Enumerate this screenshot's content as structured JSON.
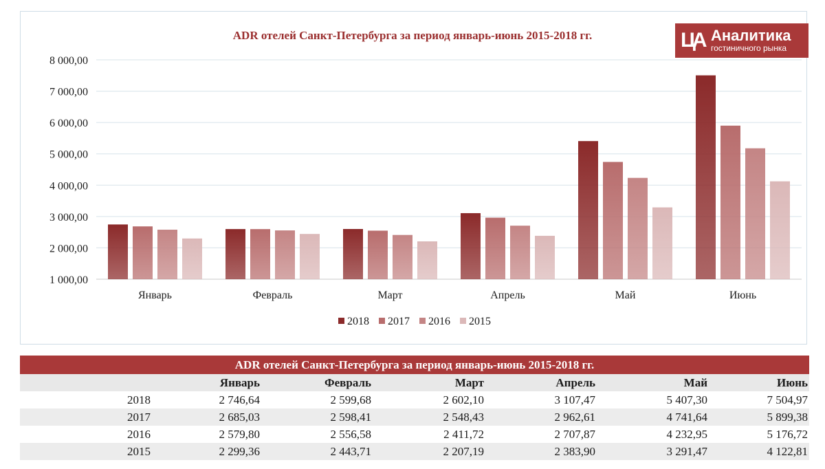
{
  "chart_data": {
    "type": "bar",
    "title": "ADR отелей Санкт-Петербурга за период январь-июнь 2015-2018 гг.",
    "categories": [
      "Январь",
      "Февраль",
      "Март",
      "Апрель",
      "Май",
      "Июнь"
    ],
    "series": [
      {
        "name": "2018",
        "color": "#8b2a2a",
        "values": [
          2746.64,
          2599.68,
          2602.1,
          3107.47,
          5407.3,
          7504.97
        ]
      },
      {
        "name": "2017",
        "color": "#b86d6d",
        "values": [
          2685.03,
          2598.41,
          2548.43,
          2962.61,
          4741.64,
          5899.38
        ]
      },
      {
        "name": "2016",
        "color": "#c48585",
        "values": [
          2579.8,
          2556.58,
          2411.72,
          2707.87,
          4232.95,
          5176.72
        ]
      },
      {
        "name": "2015",
        "color": "#dbb8b8",
        "values": [
          2299.36,
          2443.71,
          2207.19,
          2383.9,
          3291.47,
          4122.81
        ]
      }
    ],
    "ylim": [
      1000,
      8000
    ],
    "yticks": [
      "1 000,00",
      "2 000,00",
      "3 000,00",
      "4 000,00",
      "5 000,00",
      "6 000,00",
      "7 000,00",
      "8 000,00"
    ],
    "grid": true,
    "legend": "bottom"
  },
  "logo": {
    "mark": "ЦА",
    "name": "Аналитика",
    "sub": "гостиничного рынка"
  },
  "table": {
    "title": "ADR отелей Санкт-Петербурга за период январь-июнь 2015-2018 гг.",
    "columns": [
      "",
      "Январь",
      "Февраль",
      "Март",
      "Апрель",
      "Май",
      "Июнь"
    ],
    "rows": [
      [
        "2018",
        "2 746,64",
        "2 599,68",
        "2 602,10",
        "3 107,47",
        "5 407,30",
        "7 504,97"
      ],
      [
        "2017",
        "2 685,03",
        "2 598,41",
        "2 548,43",
        "2 962,61",
        "4 741,64",
        "5 899,38"
      ],
      [
        "2016",
        "2 579,80",
        "2 556,58",
        "2 411,72",
        "2 707,87",
        "4 232,95",
        "5 176,72"
      ],
      [
        "2015",
        "2 299,36",
        "2 443,71",
        "2 207,19",
        "2 383,90",
        "3 291,47",
        "4 122,81"
      ]
    ]
  }
}
